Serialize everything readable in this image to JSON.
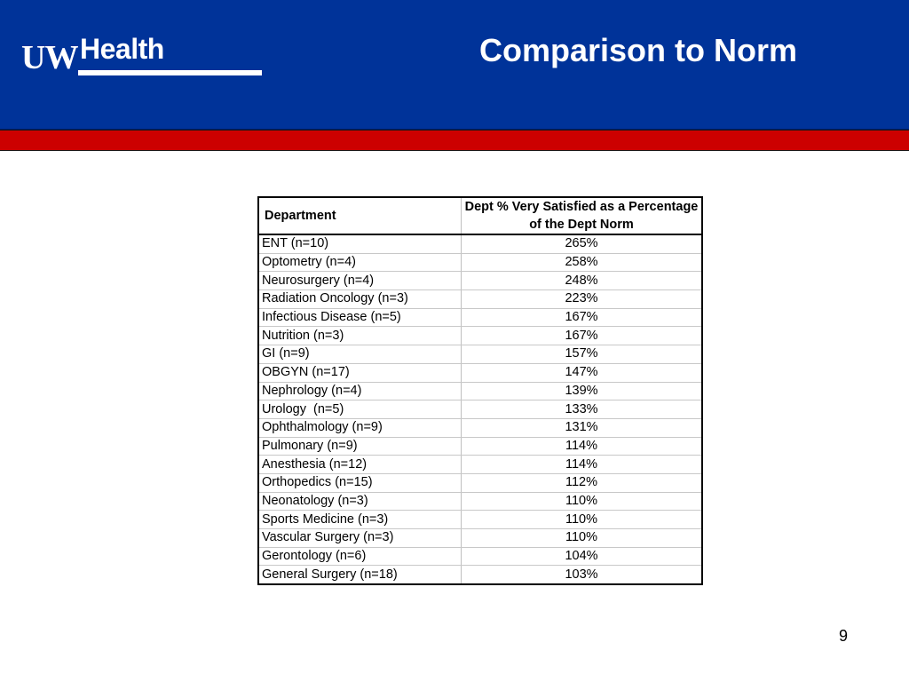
{
  "header": {
    "logo_uw": "UW",
    "logo_health": "Health",
    "title": "Comparison to Norm",
    "colors": {
      "header_bg": "#003399",
      "band": "#cc0000"
    }
  },
  "table": {
    "headers": [
      "Department",
      "Dept % Very Satisfied as a Percentage of the Dept Norm"
    ],
    "rows": [
      {
        "dept": "ENT (n=10)",
        "value": "265%"
      },
      {
        "dept": "Optometry (n=4)",
        "value": "258%"
      },
      {
        "dept": "Neurosurgery (n=4)",
        "value": "248%"
      },
      {
        "dept": "Radiation Oncology (n=3)",
        "value": "223%"
      },
      {
        "dept": "Infectious Disease (n=5)",
        "value": "167%"
      },
      {
        "dept": "Nutrition (n=3)",
        "value": "167%"
      },
      {
        "dept": "GI (n=9)",
        "value": "157%"
      },
      {
        "dept": "OBGYN (n=17)",
        "value": "147%"
      },
      {
        "dept": "Nephrology (n=4)",
        "value": "139%"
      },
      {
        "dept": "Urology  (n=5)",
        "value": "133%"
      },
      {
        "dept": "Ophthalmology (n=9)",
        "value": "131%"
      },
      {
        "dept": "Pulmonary (n=9)",
        "value": "114%"
      },
      {
        "dept": "Anesthesia (n=12)",
        "value": "114%"
      },
      {
        "dept": "Orthopedics (n=15)",
        "value": "112%"
      },
      {
        "dept": "Neonatology (n=3)",
        "value": "110%"
      },
      {
        "dept": "Sports Medicine (n=3)",
        "value": "110%"
      },
      {
        "dept": "Vascular Surgery (n=3)",
        "value": "110%"
      },
      {
        "dept": "Gerontology (n=6)",
        "value": "104%"
      },
      {
        "dept": "General Surgery (n=18)",
        "value": "103%"
      }
    ]
  },
  "footer": {
    "page_number": "9"
  }
}
